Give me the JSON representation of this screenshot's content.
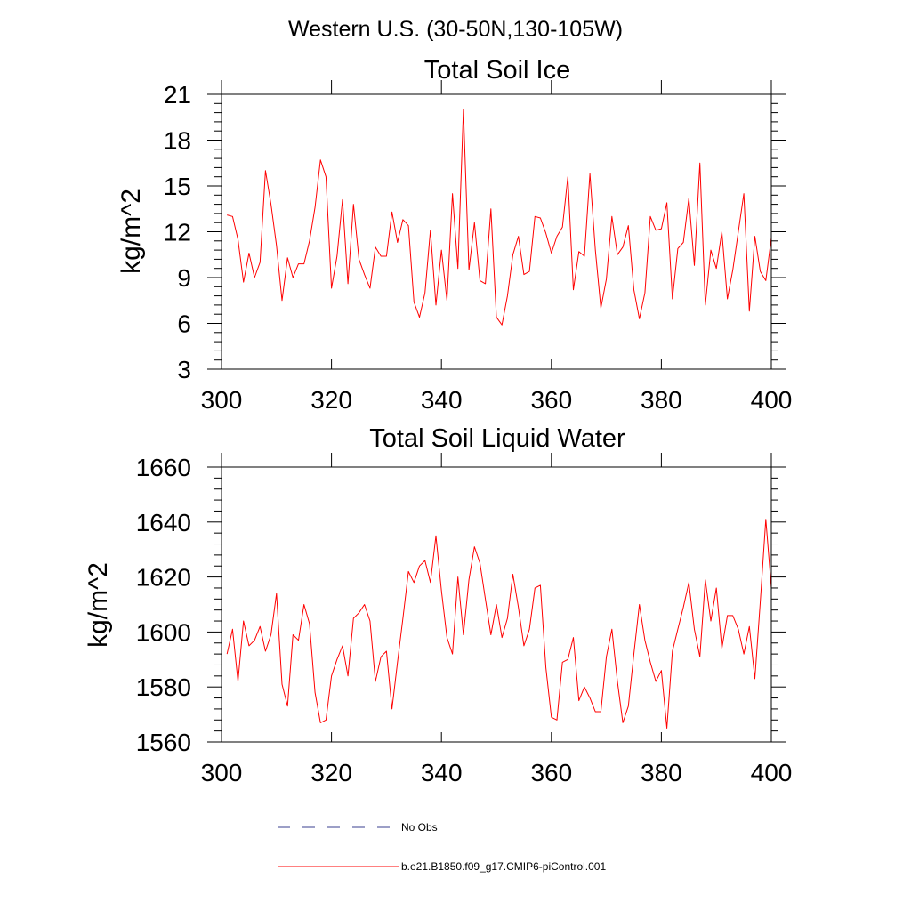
{
  "page_title": "Western U.S. (30-50N,130-105W)",
  "colors": {
    "series": "#ff0000",
    "obs": "#3a3f8f",
    "axis": "#000000"
  },
  "legend": [
    {
      "label": "No Obs",
      "style": "dashed",
      "color": "#3a3f8f"
    },
    {
      "label": "b.e21.B1850.f09_g17.CMIP6-piControl.001",
      "style": "solid",
      "color": "#ff0000"
    }
  ],
  "chart_data": [
    {
      "type": "line",
      "title": "Total Soil Ice",
      "xlabel": "",
      "ylabel": "kg/m^2",
      "xlim": [
        300,
        400
      ],
      "ylim": [
        3,
        21
      ],
      "xticks": [
        300,
        320,
        340,
        360,
        380,
        400
      ],
      "yticks": [
        3,
        6,
        9,
        12,
        15,
        18,
        21
      ],
      "ytick_labels": [
        "3",
        "6",
        "9",
        "12",
        "15",
        "18",
        "21"
      ],
      "yminor_step": 0.6,
      "x_start": 301,
      "series": [
        {
          "name": "b.e21.B1850.f09_g17.CMIP6-piControl.001",
          "values": [
            13.1,
            13.0,
            11.5,
            8.7,
            10.6,
            9.0,
            10.0,
            16.0,
            13.8,
            11.1,
            7.5,
            10.3,
            9.0,
            9.9,
            9.9,
            11.4,
            13.6,
            16.7,
            15.6,
            8.3,
            10.4,
            14.1,
            8.6,
            13.8,
            10.2,
            9.2,
            8.3,
            11.0,
            10.4,
            10.4,
            13.3,
            11.3,
            12.8,
            12.4,
            7.4,
            6.4,
            8.0,
            12.1,
            7.2,
            10.8,
            7.5,
            14.5,
            9.6,
            20.0,
            9.5,
            12.6,
            8.8,
            8.6,
            13.5,
            6.4,
            5.9,
            7.8,
            10.5,
            11.7,
            9.2,
            9.4,
            13.0,
            12.9,
            11.9,
            10.6,
            11.7,
            12.3,
            15.6,
            8.2,
            10.7,
            10.4,
            15.8,
            10.8,
            7.0,
            8.9,
            13.0,
            10.5,
            11.0,
            12.4,
            8.2,
            6.3,
            8.0,
            13.0,
            12.1,
            12.2,
            13.9,
            7.6,
            10.9,
            11.3,
            14.2,
            9.8,
            16.5,
            7.2,
            10.8,
            9.6,
            12.0,
            7.6,
            9.5,
            12.0,
            14.5,
            6.8,
            11.7,
            9.4,
            8.8,
            11.6
          ]
        }
      ]
    },
    {
      "type": "line",
      "title": "Total Soil Liquid Water",
      "xlabel": "",
      "ylabel": "kg/m^2",
      "xlim": [
        300,
        400
      ],
      "ylim": [
        1560,
        1660
      ],
      "xticks": [
        300,
        320,
        340,
        360,
        380,
        400
      ],
      "yticks": [
        1560,
        1580,
        1600,
        1620,
        1640,
        1660
      ],
      "ytick_labels": [
        "1560",
        "1580",
        "1600",
        "1620",
        "1640",
        "1660"
      ],
      "yminor_step": 4,
      "x_start": 301,
      "series": [
        {
          "name": "b.e21.B1850.f09_g17.CMIP6-piControl.001",
          "values": [
            1592,
            1601,
            1582,
            1604,
            1595,
            1597,
            1602,
            1593,
            1599,
            1614,
            1581,
            1573,
            1599,
            1597,
            1610,
            1603,
            1578,
            1567,
            1568,
            1584,
            1590,
            1595,
            1584,
            1605,
            1607,
            1610,
            1604,
            1582,
            1591,
            1593,
            1572,
            1589,
            1605,
            1622,
            1618,
            1624,
            1626,
            1618,
            1635,
            1615,
            1598,
            1592,
            1620,
            1599,
            1619,
            1631,
            1625,
            1612,
            1599,
            1610,
            1598,
            1605,
            1621,
            1609,
            1595,
            1601,
            1616,
            1617,
            1587,
            1569,
            1568,
            1589,
            1590,
            1598,
            1575,
            1580,
            1576,
            1571,
            1571,
            1591,
            1601,
            1582,
            1567,
            1573,
            1592,
            1610,
            1597,
            1589,
            1582,
            1586,
            1565,
            1593,
            1601,
            1609,
            1618,
            1601,
            1591,
            1619,
            1604,
            1616,
            1594,
            1606,
            1606,
            1601,
            1592,
            1602,
            1583,
            1611,
            1641,
            1616
          ]
        }
      ]
    }
  ]
}
